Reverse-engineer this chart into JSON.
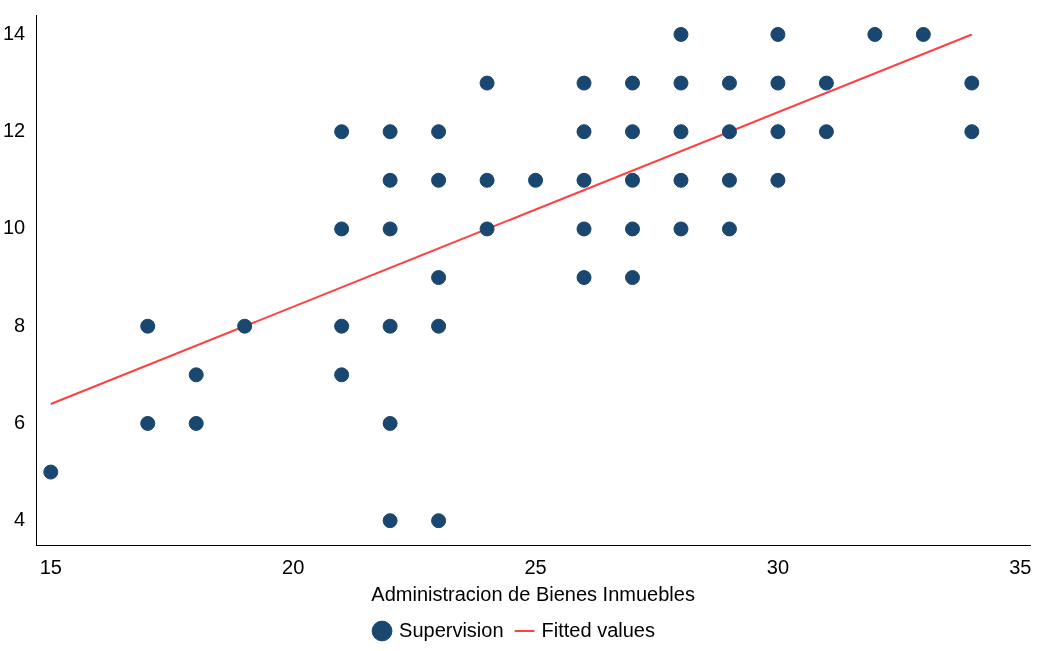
{
  "chart_data": {
    "type": "scatter",
    "xlabel": "Administracion de Bienes Inmuebles",
    "xlim": [
      14.7,
      35.2
    ],
    "xticks": [
      15,
      20,
      25,
      30,
      35
    ],
    "ylim": [
      3.5,
      14.4
    ],
    "yticks": [
      4,
      6,
      8,
      10,
      12,
      14
    ],
    "grid": false,
    "legend": "bottom",
    "marker": "circle",
    "series": [
      {
        "name": "Supervision",
        "color": "#1a476f",
        "x": [
          15,
          17,
          17,
          18,
          18,
          19,
          21,
          21,
          21,
          21,
          22,
          22,
          22,
          22,
          22,
          22,
          23,
          23,
          23,
          23,
          23,
          24,
          24,
          24,
          25,
          26,
          26,
          26,
          26,
          26,
          27,
          27,
          27,
          27,
          27,
          28,
          28,
          28,
          28,
          28,
          29,
          29,
          29,
          29,
          30,
          30,
          30,
          30,
          31,
          31,
          32,
          33,
          34,
          34
        ],
        "values": [
          5,
          8,
          6,
          7,
          6,
          8,
          12,
          10,
          8,
          7,
          12,
          11,
          10,
          8,
          6,
          4,
          12,
          11,
          9,
          8,
          4,
          13,
          11,
          10,
          11,
          13,
          12,
          11,
          10,
          9,
          13,
          12,
          11,
          10,
          9,
          14,
          13,
          12,
          11,
          10,
          13,
          12,
          11,
          10,
          14,
          13,
          12,
          11,
          13,
          12,
          14,
          14,
          13,
          12
        ]
      },
      {
        "name": "Fitted values",
        "type": "line",
        "color": "#ff4040",
        "marker": "none",
        "x": [
          15,
          34
        ],
        "values": [
          6.4,
          14.0
        ]
      }
    ]
  }
}
